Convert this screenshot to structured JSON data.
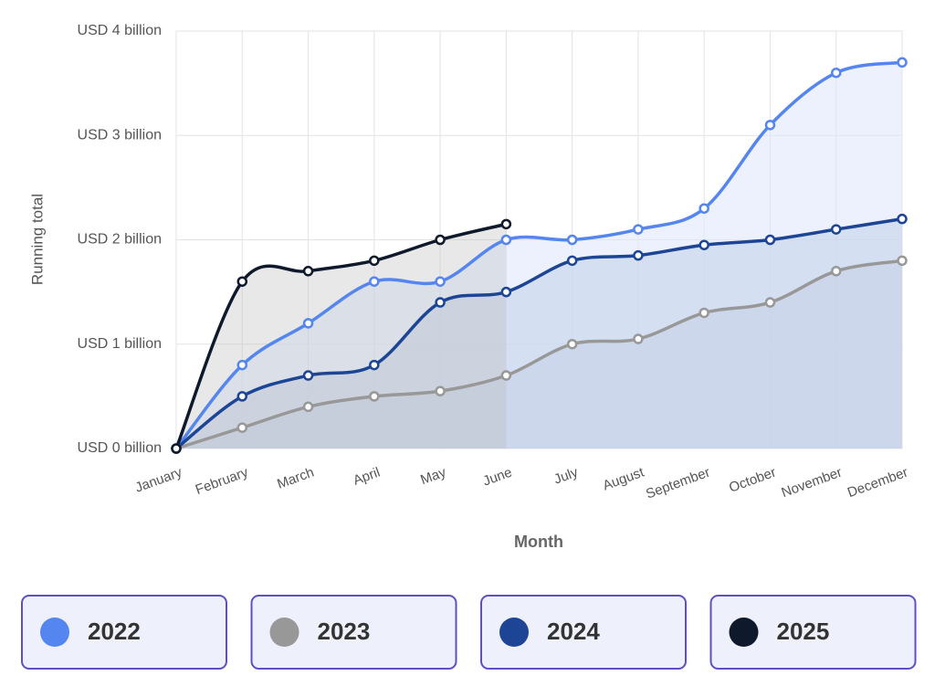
{
  "chart_data": {
    "type": "line",
    "area": true,
    "xlabel": "Month",
    "ylabel": "Running total",
    "categories": [
      "January",
      "February",
      "March",
      "April",
      "May",
      "June",
      "July",
      "August",
      "September",
      "October",
      "November",
      "December"
    ],
    "series": [
      {
        "name": "2022",
        "color": "#5585ee",
        "values": [
          0,
          0.8,
          1.2,
          1.6,
          1.6,
          2.0,
          2.0,
          2.1,
          2.3,
          3.1,
          3.6,
          3.7
        ]
      },
      {
        "name": "2023",
        "color": "#989898",
        "values": [
          0,
          0.2,
          0.4,
          0.5,
          0.55,
          0.7,
          1.0,
          1.05,
          1.3,
          1.4,
          1.7,
          1.8
        ]
      },
      {
        "name": "2024",
        "color": "#1d4596",
        "values": [
          0,
          0.5,
          0.7,
          0.8,
          1.4,
          1.5,
          1.8,
          1.85,
          1.95,
          2.0,
          2.1,
          2.2
        ]
      },
      {
        "name": "2025",
        "color": "#0e1a2c",
        "values": [
          0,
          1.6,
          1.7,
          1.8,
          2.0,
          2.15,
          null,
          null,
          null,
          null,
          null,
          null
        ]
      }
    ],
    "ylim": [
      0,
      4
    ],
    "yticks": [
      {
        "value": 0,
        "label": "USD 0 billion"
      },
      {
        "value": 1,
        "label": "USD 1 billion"
      },
      {
        "value": 2,
        "label": "USD 2 billion"
      },
      {
        "value": 3,
        "label": "USD 3 billion"
      },
      {
        "value": 4,
        "label": "USD 4 billion"
      }
    ],
    "grid": true,
    "legend": "bottom"
  }
}
